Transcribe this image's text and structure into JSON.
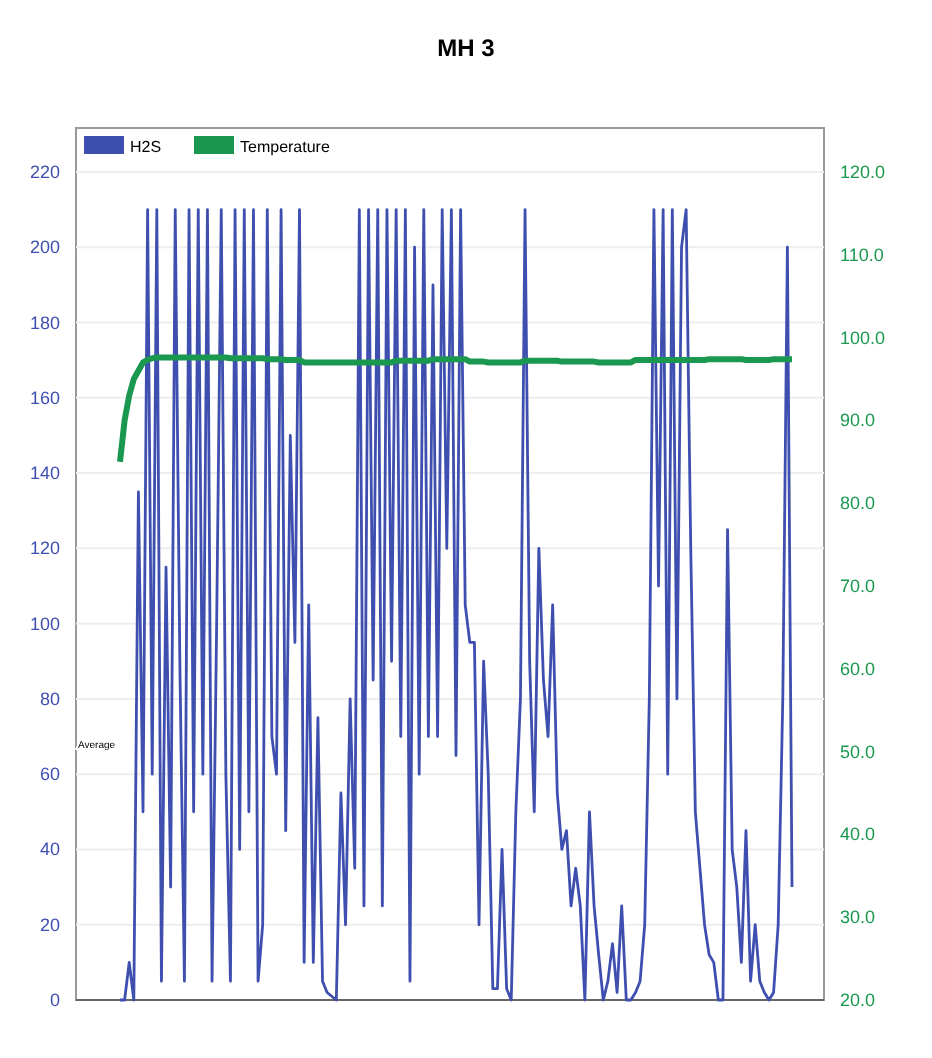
{
  "chart_data": {
    "type": "line",
    "title": "MH 3",
    "annotations": [
      "Average"
    ],
    "legend": "top left",
    "grid": "y",
    "categories": [
      null,
      null,
      null,
      null,
      null,
      null,
      null,
      null,
      null,
      null,
      null,
      null,
      null,
      null,
      null,
      null,
      null,
      null,
      null,
      null,
      null,
      null,
      null,
      null,
      null,
      null,
      null,
      null,
      null,
      null,
      null,
      null,
      null,
      null,
      null,
      null,
      null,
      null,
      null,
      null,
      null,
      null,
      null,
      null,
      null,
      null,
      null,
      null,
      null,
      null,
      null,
      null,
      null,
      null,
      null,
      null,
      null,
      null,
      null,
      null,
      null,
      null,
      null,
      null,
      null,
      null,
      null,
      null,
      null,
      null,
      null,
      null,
      null,
      null,
      null,
      null,
      null,
      null,
      null,
      null,
      null,
      null,
      null,
      null,
      null,
      null,
      null,
      null,
      null,
      null,
      null,
      null,
      null,
      null,
      null,
      null,
      null,
      null,
      null,
      null,
      null,
      null,
      null,
      null,
      null,
      null,
      null,
      null,
      null,
      null,
      null,
      null,
      null,
      null,
      null,
      null,
      null,
      null,
      null,
      null,
      null,
      null,
      null,
      null,
      null,
      null,
      null,
      null,
      null,
      null,
      null,
      null,
      null,
      null,
      null,
      null,
      null,
      null,
      null,
      null,
      null,
      null,
      null,
      null,
      null,
      null,
      null
    ],
    "ylim": [
      0,
      220
    ],
    "yticks": [
      0,
      20,
      40,
      60,
      80,
      100,
      120,
      140,
      160,
      180,
      200,
      220
    ],
    "y2lim": [
      20,
      120
    ],
    "y2ticks": [
      {
        "value": 20,
        "label": "20.0"
      },
      {
        "value": 30,
        "label": "30.0"
      },
      {
        "value": 40,
        "label": "40.0"
      },
      {
        "value": 50,
        "label": "50.0"
      },
      {
        "value": 60,
        "label": "60.0"
      },
      {
        "value": 70,
        "label": "70.0"
      },
      {
        "value": 80,
        "label": "80.0"
      },
      {
        "value": 90,
        "label": "90.0"
      },
      {
        "value": 100,
        "label": "100.0"
      },
      {
        "value": 110,
        "label": "110.0"
      },
      {
        "value": 120,
        "label": "120.0"
      }
    ],
    "series": [
      {
        "name": "H2S",
        "color": "#3f4fb0",
        "values": [
          0,
          0,
          10,
          0,
          135,
          50,
          210,
          60,
          210,
          5,
          115,
          30,
          210,
          90,
          5,
          210,
          50,
          210,
          60,
          210,
          5,
          100,
          210,
          60,
          5,
          210,
          40,
          210,
          50,
          210,
          5,
          20,
          210,
          70,
          60,
          210,
          45,
          150,
          95,
          210,
          10,
          105,
          10,
          75,
          5,
          2,
          1,
          0,
          55,
          20,
          80,
          35,
          210,
          25,
          210,
          85,
          210,
          25,
          210,
          90,
          210,
          70,
          210,
          5,
          200,
          60,
          210,
          70,
          190,
          70,
          210,
          120,
          210,
          65,
          210,
          105,
          95,
          95,
          20,
          90,
          60,
          3,
          3,
          40,
          3,
          0,
          50,
          80,
          210,
          90,
          50,
          120,
          85,
          70,
          105,
          55,
          40,
          45,
          25,
          35,
          25,
          0,
          50,
          25,
          12,
          0,
          5,
          15,
          2,
          25,
          0,
          0,
          2,
          5,
          20,
          80,
          210,
          110,
          210,
          60,
          210,
          80,
          200,
          210,
          120,
          50,
          35,
          20,
          12,
          10,
          0,
          0,
          125,
          40,
          30,
          10,
          45,
          5,
          20,
          5,
          2,
          0,
          2,
          20,
          80,
          200,
          30
        ]
      },
      {
        "name": "Temperature",
        "color": "#1a9850",
        "axis": "y2",
        "values": [
          85,
          90,
          93,
          95,
          96,
          97,
          97.3,
          97.5,
          97.6,
          97.6,
          97.6,
          97.6,
          97.6,
          97.6,
          97.6,
          97.6,
          97.6,
          97.6,
          97.6,
          97.6,
          97.6,
          97.6,
          97.6,
          97.6,
          97.5,
          97.5,
          97.5,
          97.5,
          97.5,
          97.5,
          97.5,
          97.5,
          97.4,
          97.4,
          97.4,
          97.4,
          97.3,
          97.3,
          97.3,
          97.3,
          97,
          97,
          97,
          97,
          97,
          97,
          97,
          97,
          97,
          97,
          97,
          97,
          97,
          97,
          97,
          97,
          97,
          97,
          97,
          97,
          97.2,
          97.2,
          97.2,
          97.2,
          97.2,
          97.2,
          97.2,
          97.2,
          97.4,
          97.4,
          97.4,
          97.4,
          97.4,
          97.4,
          97.4,
          97.4,
          97.1,
          97.1,
          97.1,
          97.1,
          97,
          97,
          97,
          97,
          97,
          97,
          97,
          97,
          97.2,
          97.2,
          97.2,
          97.2,
          97.2,
          97.2,
          97.2,
          97.2,
          97.1,
          97.1,
          97.1,
          97.1,
          97.1,
          97.1,
          97.1,
          97.1,
          97,
          97,
          97,
          97,
          97,
          97,
          97,
          97,
          97.3,
          97.3,
          97.3,
          97.3,
          97.3,
          97.3,
          97.3,
          97.3,
          97.3,
          97.3,
          97.3,
          97.3,
          97.3,
          97.3,
          97.3,
          97.3,
          97.4,
          97.4,
          97.4,
          97.4,
          97.4,
          97.4,
          97.4,
          97.4,
          97.3,
          97.3,
          97.3,
          97.3,
          97.3,
          97.3,
          97.4,
          97.4,
          97.4,
          97.4,
          97.4
        ]
      }
    ]
  }
}
